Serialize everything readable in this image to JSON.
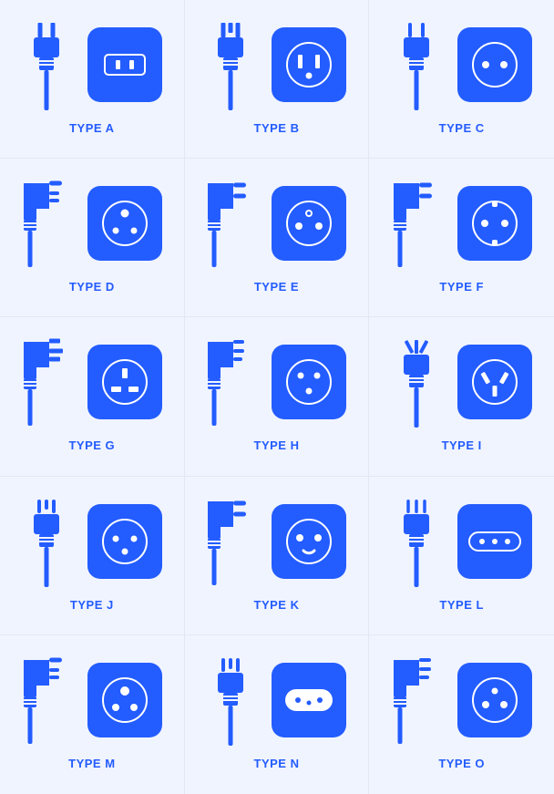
{
  "type": "infographic-grid",
  "grid": {
    "cols": 3,
    "rows": 5
  },
  "background_color": "#f0f4ff",
  "divider_color": "#e2e8f0",
  "accent_color": "#235cff",
  "socket_bg": "#235cff",
  "socket_stroke": "#ffffff",
  "label_fontsize": 13,
  "label_fontweight": 700,
  "label_color": "#235cff",
  "socket_size": 82,
  "socket_radius": 14,
  "plug_size": 62,
  "items": [
    {
      "id": "A",
      "label": "TYPE A",
      "plug": "straight-2blade",
      "socket": "slot-rect-2"
    },
    {
      "id": "B",
      "label": "TYPE B",
      "plug": "straight-3blade",
      "socket": "round-2vslot-1hole"
    },
    {
      "id": "C",
      "label": "TYPE C",
      "plug": "straight-2pin",
      "socket": "round-2hole"
    },
    {
      "id": "D",
      "label": "TYPE D",
      "plug": "angled-3pin-big",
      "socket": "round-3hole-tri"
    },
    {
      "id": "E",
      "label": "TYPE E",
      "plug": "angled-2pin-hole",
      "socket": "round-2hole-1pin"
    },
    {
      "id": "F",
      "label": "TYPE F",
      "plug": "angled-2pin-clip",
      "socket": "round-2hole-2clip"
    },
    {
      "id": "G",
      "label": "TYPE G",
      "plug": "angled-3blade-uk",
      "socket": "round-3rect-uk"
    },
    {
      "id": "H",
      "label": "TYPE H",
      "plug": "angled-3pin-y",
      "socket": "round-3hole-y"
    },
    {
      "id": "I",
      "label": "TYPE I",
      "plug": "straight-3vblade",
      "socket": "round-3vslot"
    },
    {
      "id": "J",
      "label": "TYPE J",
      "plug": "straight-3pin-off",
      "socket": "round-3hole-off"
    },
    {
      "id": "K",
      "label": "TYPE K",
      "plug": "angled-2pin-u",
      "socket": "round-2hole-smile"
    },
    {
      "id": "L",
      "label": "TYPE L",
      "plug": "straight-3pin-line",
      "socket": "pill-3hole-line"
    },
    {
      "id": "M",
      "label": "TYPE M",
      "plug": "angled-3pin-big",
      "socket": "round-3hole-big"
    },
    {
      "id": "N",
      "label": "TYPE N",
      "plug": "straight-3pin-n",
      "socket": "pill-3hole-n"
    },
    {
      "id": "O",
      "label": "TYPE O",
      "plug": "angled-3pin-o",
      "socket": "round-3hole-o"
    }
  ]
}
